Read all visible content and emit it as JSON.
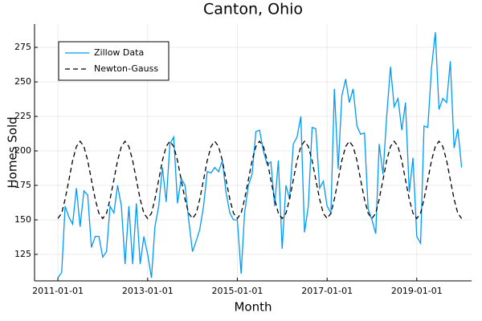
{
  "chart_data": {
    "type": "line",
    "title": "Canton, Ohio",
    "x_label": "Month",
    "y_label": "Homes Sold",
    "x": [
      "2011-01-01",
      "2011-02-01",
      "2011-03-01",
      "2011-04-01",
      "2011-05-01",
      "2011-06-01",
      "2011-07-01",
      "2011-08-01",
      "2011-09-01",
      "2011-10-01",
      "2011-11-01",
      "2011-12-01",
      "2012-01-01",
      "2012-02-01",
      "2012-03-01",
      "2012-04-01",
      "2012-05-01",
      "2012-06-01",
      "2012-07-01",
      "2012-08-01",
      "2012-09-01",
      "2012-10-01",
      "2012-11-01",
      "2012-12-01",
      "2013-01-01",
      "2013-02-01",
      "2013-03-01",
      "2013-04-01",
      "2013-05-01",
      "2013-06-01",
      "2013-07-01",
      "2013-08-01",
      "2013-09-01",
      "2013-10-01",
      "2013-11-01",
      "2013-12-01",
      "2014-01-01",
      "2014-02-01",
      "2014-03-01",
      "2014-04-01",
      "2014-05-01",
      "2014-06-01",
      "2014-07-01",
      "2014-08-01",
      "2014-09-01",
      "2014-10-01",
      "2014-11-01",
      "2014-12-01",
      "2015-01-01",
      "2015-02-01",
      "2015-03-01",
      "2015-04-01",
      "2015-05-01",
      "2015-06-01",
      "2015-07-01",
      "2015-08-01",
      "2015-09-01",
      "2015-10-01",
      "2015-11-01",
      "2015-12-01",
      "2016-01-01",
      "2016-02-01",
      "2016-03-01",
      "2016-04-01",
      "2016-05-01",
      "2016-06-01",
      "2016-07-01",
      "2016-08-01",
      "2016-09-01",
      "2016-10-01",
      "2016-11-01",
      "2016-12-01",
      "2017-01-01",
      "2017-02-01",
      "2017-03-01",
      "2017-04-01",
      "2017-05-01",
      "2017-06-01",
      "2017-07-01",
      "2017-08-01",
      "2017-09-01",
      "2017-10-01",
      "2017-11-01",
      "2017-12-01",
      "2018-01-01",
      "2018-02-01",
      "2018-03-01",
      "2018-04-01",
      "2018-05-01",
      "2018-06-01",
      "2018-07-01",
      "2018-08-01",
      "2018-09-01",
      "2018-10-01",
      "2018-11-01",
      "2018-12-01",
      "2019-01-01",
      "2019-02-01",
      "2019-03-01",
      "2019-04-01",
      "2019-05-01",
      "2019-06-01",
      "2019-07-01",
      "2019-08-01",
      "2019-09-01",
      "2019-10-01",
      "2019-11-01",
      "2019-12-01",
      "2020-01-01"
    ],
    "series": [
      {
        "name": "Zillow Data",
        "color": "#009af9",
        "dash": false,
        "values": [
          108,
          112,
          160,
          152,
          147,
          173,
          145,
          171,
          168,
          130,
          138,
          138,
          123,
          127,
          160,
          155,
          175,
          160,
          118,
          160,
          118,
          162,
          118,
          138,
          125,
          108,
          145,
          160,
          188,
          163,
          205,
          210,
          162,
          180,
          175,
          150,
          127,
          135,
          143,
          160,
          185,
          184,
          188,
          185,
          193,
          170,
          155,
          150,
          150,
          111,
          155,
          175,
          183,
          214,
          215,
          200,
          190,
          192,
          160,
          193,
          129,
          175,
          165,
          205,
          210,
          225,
          141,
          160,
          217,
          216,
          173,
          178,
          160,
          155,
          245,
          187,
          240,
          252,
          235,
          245,
          218,
          212,
          213,
          158,
          150,
          140,
          205,
          183,
          225,
          261,
          232,
          238,
          215,
          235,
          170,
          195,
          138,
          133,
          218,
          217,
          260,
          286,
          230,
          238,
          235,
          265,
          202,
          216,
          188
        ]
      },
      {
        "name": "Newton-Gauss",
        "color": "#000000",
        "dash": true,
        "values": [
          151,
          154.8,
          165,
          179,
          193,
          203.2,
          207,
          203.2,
          193,
          179,
          165,
          154.8,
          151,
          154.8,
          165,
          179,
          193,
          203.2,
          207,
          203.2,
          193,
          179,
          165,
          154.8,
          151,
          154.8,
          165,
          179,
          193,
          203.2,
          207,
          203.2,
          193,
          179,
          165,
          154.8,
          151,
          154.8,
          165,
          179,
          193,
          203.2,
          207,
          203.2,
          193,
          179,
          165,
          154.8,
          151,
          154.8,
          165,
          179,
          193,
          203.2,
          207,
          203.2,
          193,
          179,
          165,
          154.8,
          151,
          154.8,
          165,
          179,
          193,
          203.2,
          207,
          203.2,
          193,
          179,
          165,
          154.8,
          151,
          154.8,
          165,
          179,
          193,
          203.2,
          207,
          203.2,
          193,
          179,
          165,
          154.8,
          151,
          154.8,
          165,
          179,
          193,
          203.2,
          207,
          203.2,
          193,
          179,
          165,
          154.8,
          151,
          154.8,
          165,
          179,
          193,
          203.2,
          207,
          203.2,
          193,
          179,
          165,
          154.8,
          151
        ]
      }
    ],
    "xlim": [
      "2010-06-25",
      "2020-03-22"
    ],
    "xticks": [
      "2011-01-01",
      "2013-01-01",
      "2015-01-01",
      "2017-01-01",
      "2019-01-01"
    ],
    "ylim": [
      105.8,
      291.9
    ],
    "yticks": [
      125,
      150,
      175,
      200,
      225,
      250,
      275
    ],
    "grid": true,
    "legend": "upper left"
  }
}
